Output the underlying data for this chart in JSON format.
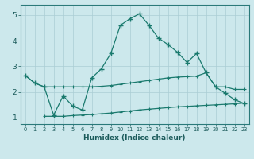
{
  "xlabel": "Humidex (Indice chaleur)",
  "background_color": "#cce8ec",
  "grid_color": "#aacdd4",
  "line_color": "#1a7a6e",
  "xlim": [
    -0.5,
    23.5
  ],
  "ylim": [
    0.75,
    5.4
  ],
  "xticks": [
    0,
    1,
    2,
    3,
    4,
    5,
    6,
    7,
    8,
    9,
    10,
    11,
    12,
    13,
    14,
    15,
    16,
    17,
    18,
    19,
    20,
    21,
    22,
    23
  ],
  "yticks": [
    1,
    2,
    3,
    4,
    5
  ],
  "main_x": [
    0,
    1,
    2,
    3,
    4,
    5,
    6,
    7,
    8,
    9,
    10,
    11,
    12,
    13,
    14,
    15,
    16,
    17,
    18,
    19,
    20,
    21,
    22,
    23
  ],
  "main_y": [
    2.65,
    2.35,
    2.2,
    1.1,
    1.85,
    1.45,
    1.3,
    2.55,
    2.9,
    3.5,
    4.6,
    4.85,
    5.05,
    4.6,
    4.1,
    3.85,
    3.55,
    3.15,
    3.5,
    2.75,
    2.2,
    1.95,
    1.7,
    1.55
  ],
  "upper_x": [
    0,
    1,
    2,
    3,
    4,
    5,
    6,
    7,
    8,
    9,
    10,
    11,
    12,
    13,
    14,
    15,
    16,
    17,
    18,
    19,
    20,
    21,
    22,
    23
  ],
  "upper_y": [
    2.65,
    2.35,
    2.2,
    2.2,
    2.2,
    2.2,
    2.2,
    2.2,
    2.22,
    2.25,
    2.3,
    2.35,
    2.4,
    2.45,
    2.5,
    2.55,
    2.58,
    2.6,
    2.62,
    2.75,
    2.2,
    2.2,
    2.1,
    2.1
  ],
  "lower_x": [
    2,
    3,
    4,
    5,
    6,
    7,
    8,
    9,
    10,
    11,
    12,
    13,
    14,
    15,
    16,
    17,
    18,
    19,
    20,
    21,
    22,
    23
  ],
  "lower_y": [
    1.05,
    1.05,
    1.05,
    1.08,
    1.1,
    1.12,
    1.15,
    1.18,
    1.22,
    1.26,
    1.3,
    1.33,
    1.36,
    1.39,
    1.42,
    1.44,
    1.46,
    1.48,
    1.5,
    1.52,
    1.54,
    1.57
  ]
}
